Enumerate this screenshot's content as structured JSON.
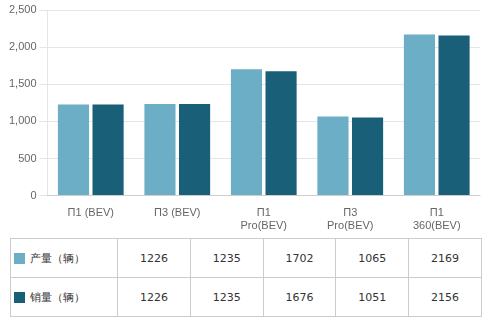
{
  "chart_data": {
    "type": "bar",
    "categories": [
      "Π1 (BEV)",
      "Π3 (BEV)",
      "Π1\nPro(BEV)",
      "Π3\nPro(BEV)",
      "Π1\n360(BEV)"
    ],
    "series": [
      {
        "name": "产量（辆）",
        "color": "#6baec6",
        "values": [
          1226,
          1235,
          1702,
          1065,
          2169
        ]
      },
      {
        "name": "销量（辆）",
        "color": "#1a5f78",
        "values": [
          1226,
          1235,
          1676,
          1051,
          2156
        ]
      }
    ],
    "ylim": [
      0,
      2500
    ],
    "yticks": [
      0,
      500,
      1000,
      1500,
      2000,
      2500
    ],
    "grid": true,
    "legend": "bottom"
  }
}
